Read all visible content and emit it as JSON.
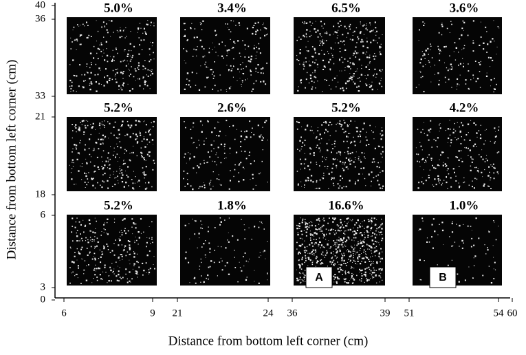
{
  "y_axis": {
    "label": "Distance from bottom left corner (cm)",
    "ticks": [
      "40",
      "36",
      "33",
      "21",
      "18",
      "6",
      "3",
      "0"
    ]
  },
  "x_axis": {
    "label": "Distance from bottom left corner (cm)",
    "ticks": [
      "6",
      "9",
      "21",
      "24",
      "36",
      "39",
      "51",
      "54",
      "60"
    ]
  },
  "panels": [
    [
      "5.0%",
      "3.4%",
      "6.5%",
      "3.6%"
    ],
    [
      "5.2%",
      "2.6%",
      "5.2%",
      "4.2%"
    ],
    [
      "5.2%",
      "1.8%",
      "16.6%",
      "1.0%"
    ]
  ],
  "markers": [
    "A",
    "B"
  ]
}
